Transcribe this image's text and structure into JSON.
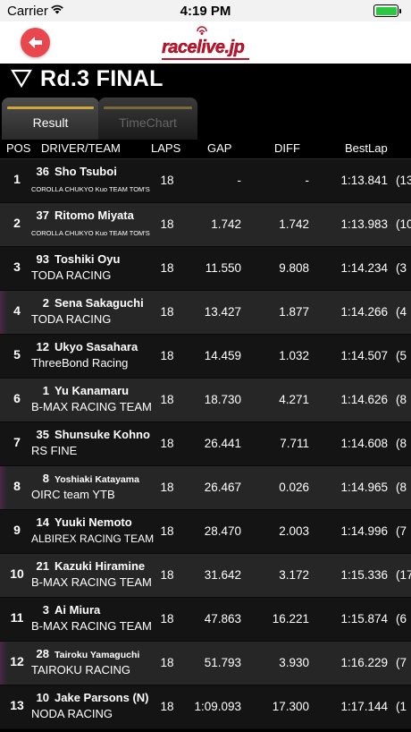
{
  "status": {
    "carrier": "Carrier",
    "time": "4:19 PM"
  },
  "nav": {
    "logo_text": "racelive.jp"
  },
  "page": {
    "title": "Rd.3 FINAL"
  },
  "tabs": [
    {
      "label": "Result",
      "selected": true
    },
    {
      "label": "TimeChart",
      "selected": false
    }
  ],
  "columns": {
    "pos": "POS",
    "driver_team": "DRIVER/TEAM",
    "laps": "LAPS",
    "gap": "GAP",
    "diff": "DIFF",
    "bestlap": "BestLap"
  },
  "colors": {
    "accent_red": "#e8474e",
    "tab_gold": "#d1a73c",
    "battery_green": "#2bc840"
  },
  "results": [
    {
      "pos": "1",
      "num": "36",
      "driver": "Sho Tsuboi",
      "team": "COROLLA CHUKYO Kuo TEAM TOM'S",
      "laps": "18",
      "gap": "-",
      "diff": "-",
      "bestlap": "1:13.841",
      "bestlap_lap": "(13"
    },
    {
      "pos": "2",
      "num": "37",
      "driver": "Ritomo Miyata",
      "team": "COROLLA CHUKYO Kuo TEAM TOM'S",
      "laps": "18",
      "gap": "1.742",
      "diff": "1.742",
      "bestlap": "1:13.983",
      "bestlap_lap": "(10"
    },
    {
      "pos": "3",
      "num": "93",
      "driver": "Toshiki Oyu",
      "team": "TODA RACING",
      "laps": "18",
      "gap": "11.550",
      "diff": "9.808",
      "bestlap": "1:14.234",
      "bestlap_lap": "(3"
    },
    {
      "pos": "4",
      "num": "2",
      "driver": "Sena Sakaguchi",
      "team": "TODA RACING",
      "laps": "18",
      "gap": "13.427",
      "diff": "1.877",
      "bestlap": "1:14.266",
      "bestlap_lap": "(4"
    },
    {
      "pos": "5",
      "num": "12",
      "driver": "Ukyo Sasahara",
      "team": "ThreeBond Racing",
      "laps": "18",
      "gap": "14.459",
      "diff": "1.032",
      "bestlap": "1:14.507",
      "bestlap_lap": "(5"
    },
    {
      "pos": "6",
      "num": "1",
      "driver": "Yu Kanamaru",
      "team": "B-MAX RACING TEAM",
      "laps": "18",
      "gap": "18.730",
      "diff": "4.271",
      "bestlap": "1:14.626",
      "bestlap_lap": "(8"
    },
    {
      "pos": "7",
      "num": "35",
      "driver": "Shunsuke Kohno",
      "team": "RS FINE",
      "laps": "18",
      "gap": "26.441",
      "diff": "7.711",
      "bestlap": "1:14.608",
      "bestlap_lap": "(8"
    },
    {
      "pos": "8",
      "num": "8",
      "driver": "Yoshiaki Katayama",
      "team": "OIRC team YTB",
      "laps": "18",
      "gap": "26.467",
      "diff": "0.026",
      "bestlap": "1:14.965",
      "bestlap_lap": "(8"
    },
    {
      "pos": "9",
      "num": "14",
      "driver": "Yuuki Nemoto",
      "team": "ALBIREX RACING TEAM",
      "laps": "18",
      "gap": "28.470",
      "diff": "2.003",
      "bestlap": "1:14.996",
      "bestlap_lap": "(7"
    },
    {
      "pos": "10",
      "num": "21",
      "driver": "Kazuki Hiramine",
      "team": "B-MAX RACING TEAM",
      "laps": "18",
      "gap": "31.642",
      "diff": "3.172",
      "bestlap": "1:15.336",
      "bestlap_lap": "(17"
    },
    {
      "pos": "11",
      "num": "3",
      "driver": "Ai Miura",
      "team": "B-MAX RACING TEAM",
      "laps": "18",
      "gap": "47.863",
      "diff": "16.221",
      "bestlap": "1:15.874",
      "bestlap_lap": "(6"
    },
    {
      "pos": "12",
      "num": "28",
      "driver": "Tairoku Yamaguchi",
      "team": "TAIROKU RACING",
      "laps": "18",
      "gap": "51.793",
      "diff": "3.930",
      "bestlap": "1:16.229",
      "bestlap_lap": "(7"
    },
    {
      "pos": "13",
      "num": "10",
      "driver": "Jake Parsons (N)",
      "team": "NODA RACING",
      "laps": "18",
      "gap": "1:09.093",
      "diff": "17.300",
      "bestlap": "1:17.144",
      "bestlap_lap": "(1"
    }
  ]
}
